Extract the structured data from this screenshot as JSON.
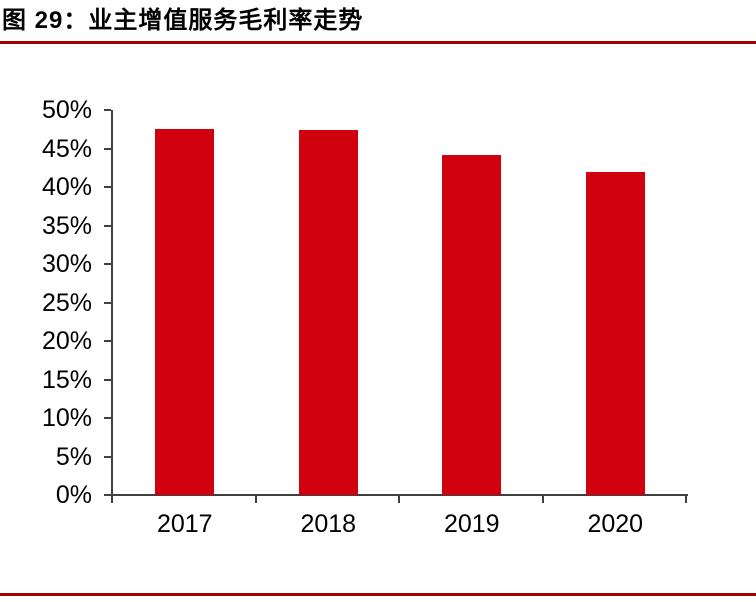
{
  "header": {
    "title": "图 29：业主增值服务毛利率走势"
  },
  "style": {
    "rule_color": "#a00000",
    "axis_color": "#404040",
    "bar_color": "#d1000f",
    "text_color": "#000000"
  },
  "chart_data": {
    "type": "bar",
    "title": "业主增值服务毛利率走势",
    "categories": [
      "2017",
      "2018",
      "2019",
      "2020"
    ],
    "values": [
      47.5,
      47.4,
      44.2,
      42.0
    ],
    "value_unit": "%",
    "xlabel": "",
    "ylabel": "",
    "ylim": [
      0,
      50
    ],
    "yticks": [
      0,
      5,
      10,
      15,
      20,
      25,
      30,
      35,
      40,
      45,
      50
    ],
    "ytick_labels": [
      "0%",
      "5%",
      "10%",
      "15%",
      "20%",
      "25%",
      "30%",
      "35%",
      "40%",
      "45%",
      "50%"
    ],
    "grid": false,
    "legend_position": "none",
    "bar_color": "#d1000f"
  }
}
